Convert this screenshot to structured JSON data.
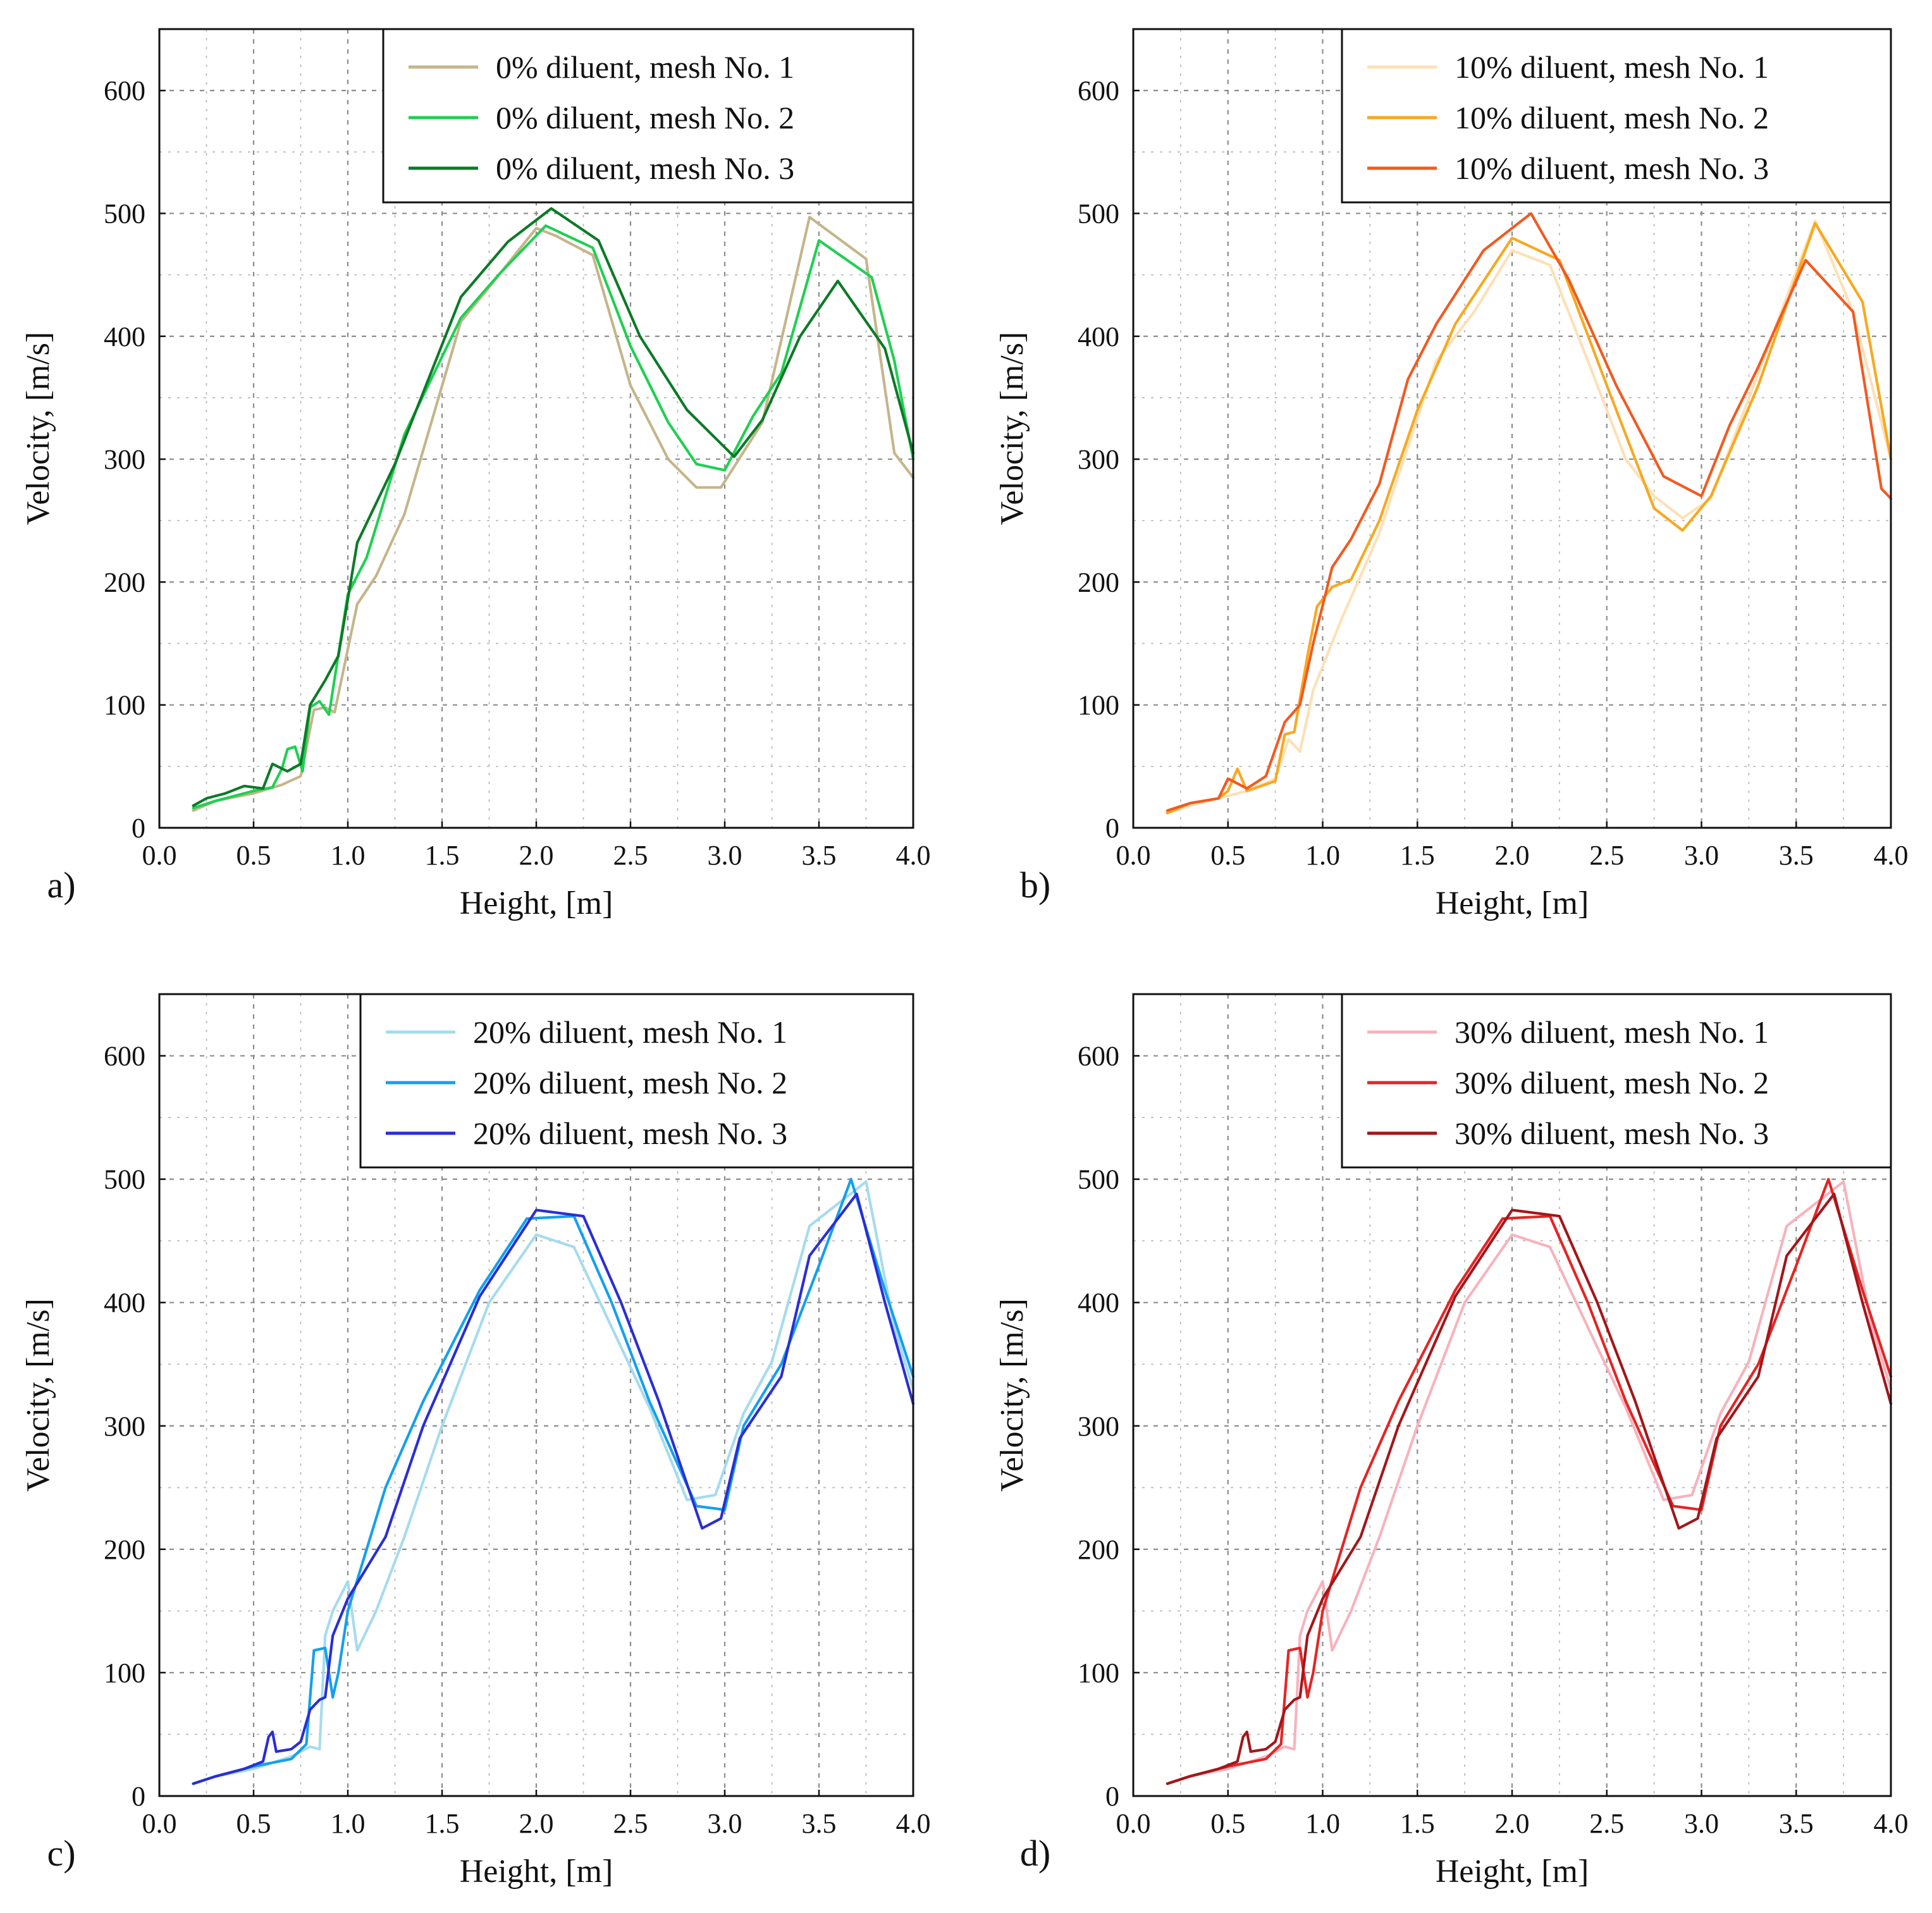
{
  "chart_data": [
    {
      "type": "line",
      "panel_tag": "a)",
      "xlabel": "Height, [m]",
      "ylabel": "Velocity, [m/s]",
      "xlim": [
        0.0,
        4.0
      ],
      "ylim": [
        0,
        650
      ],
      "xticks": [
        "0.0",
        "0.5",
        "1.0",
        "1.5",
        "2.0",
        "2.5",
        "3.0",
        "3.5",
        "4.0"
      ],
      "yticks": [
        "0",
        "100",
        "200",
        "300",
        "400",
        "500",
        "600"
      ],
      "grid": true,
      "legend_position": "top-right",
      "series": [
        {
          "name": "0% diluent, mesh No. 1",
          "color": "#c5b58b",
          "x": [
            0.18,
            0.3,
            0.5,
            0.65,
            0.75,
            0.82,
            0.88,
            0.93,
            1.05,
            1.15,
            1.3,
            1.6,
            1.75,
            2.0,
            2.1,
            2.3,
            2.5,
            2.7,
            2.85,
            2.98,
            3.2,
            3.45,
            3.75,
            3.9,
            4.0
          ],
          "y": [
            14,
            22,
            28,
            35,
            42,
            96,
            98,
            94,
            182,
            205,
            255,
            412,
            440,
            488,
            482,
            466,
            360,
            300,
            277,
            277,
            330,
            497,
            463,
            305,
            285
          ]
        },
        {
          "name": "0% diluent, mesh No. 2",
          "color": "#1fd052",
          "x": [
            0.18,
            0.3,
            0.5,
            0.6,
            0.65,
            0.68,
            0.72,
            0.76,
            0.8,
            0.85,
            0.9,
            1.0,
            1.1,
            1.3,
            1.6,
            1.8,
            2.05,
            2.3,
            2.5,
            2.7,
            2.85,
            3.0,
            3.15,
            3.3,
            3.5,
            3.78,
            3.9,
            4.0
          ],
          "y": [
            16,
            22,
            30,
            33,
            48,
            64,
            66,
            46,
            98,
            103,
            92,
            190,
            220,
            320,
            415,
            450,
            490,
            472,
            392,
            330,
            296,
            291,
            335,
            370,
            478,
            448,
            380,
            300
          ]
        },
        {
          "name": "0% diluent, mesh No. 3",
          "color": "#0c7a27",
          "x": [
            0.18,
            0.25,
            0.35,
            0.45,
            0.55,
            0.6,
            0.68,
            0.75,
            0.8,
            0.88,
            0.95,
            1.05,
            1.25,
            1.6,
            1.85,
            2.08,
            2.33,
            2.55,
            2.8,
            3.05,
            3.2,
            3.4,
            3.6,
            3.85,
            4.0
          ],
          "y": [
            18,
            24,
            28,
            34,
            32,
            52,
            46,
            52,
            100,
            120,
            140,
            232,
            296,
            432,
            477,
            504,
            478,
            400,
            340,
            302,
            332,
            400,
            445,
            390,
            305
          ]
        }
      ]
    },
    {
      "type": "line",
      "panel_tag": "b)",
      "xlabel": "Height, [m]",
      "ylabel": "Velocity, [m/s]",
      "xlim": [
        0.0,
        4.0
      ],
      "ylim": [
        0,
        650
      ],
      "xticks": [
        "0.0",
        "0.5",
        "1.0",
        "1.5",
        "2.0",
        "2.5",
        "3.0",
        "3.5",
        "4.0"
      ],
      "yticks": [
        "0",
        "100",
        "200",
        "300",
        "400",
        "500",
        "600"
      ],
      "grid": true,
      "legend_position": "top-right",
      "series": [
        {
          "name": "10% diluent, mesh No. 1",
          "color": "#fde0b6",
          "x": [
            0.18,
            0.3,
            0.45,
            0.6,
            0.75,
            0.82,
            0.88,
            0.95,
            1.1,
            1.3,
            1.6,
            1.8,
            2.0,
            2.2,
            2.4,
            2.6,
            2.75,
            2.9,
            3.05,
            3.3,
            3.6,
            3.8,
            4.0
          ],
          "y": [
            12,
            18,
            24,
            30,
            40,
            72,
            62,
            112,
            170,
            240,
            380,
            420,
            470,
            458,
            380,
            300,
            270,
            252,
            268,
            370,
            494,
            420,
            300
          ]
        },
        {
          "name": "10% diluent, mesh No. 2",
          "color": "#f8a81f",
          "x": [
            0.18,
            0.3,
            0.45,
            0.5,
            0.55,
            0.6,
            0.75,
            0.8,
            0.85,
            0.92,
            0.97,
            1.05,
            1.15,
            1.3,
            1.5,
            1.7,
            2.0,
            2.25,
            2.5,
            2.75,
            2.9,
            3.05,
            3.3,
            3.6,
            3.85,
            4.0
          ],
          "y": [
            12,
            20,
            24,
            30,
            48,
            30,
            38,
            76,
            78,
            140,
            180,
            196,
            202,
            250,
            340,
            410,
            480,
            462,
            360,
            260,
            242,
            270,
            360,
            492,
            428,
            300
          ]
        },
        {
          "name": "10% diluent, mesh No. 3",
          "color": "#f25a20",
          "x": [
            0.18,
            0.3,
            0.45,
            0.5,
            0.6,
            0.7,
            0.8,
            0.88,
            0.95,
            1.05,
            1.15,
            1.3,
            1.45,
            1.6,
            1.85,
            2.1,
            2.3,
            2.55,
            2.8,
            3.0,
            3.15,
            3.3,
            3.55,
            3.8,
            3.95,
            4.0
          ],
          "y": [
            14,
            20,
            24,
            40,
            32,
            42,
            86,
            100,
            150,
            212,
            235,
            280,
            365,
            410,
            470,
            500,
            446,
            360,
            286,
            270,
            328,
            375,
            462,
            420,
            276,
            268
          ]
        }
      ]
    },
    {
      "type": "line",
      "panel_tag": "c)",
      "xlabel": "Height, [m]",
      "ylabel": "Velocity, [m/s]",
      "xlim": [
        0.0,
        4.0
      ],
      "ylim": [
        0,
        650
      ],
      "xticks": [
        "0.0",
        "0.5",
        "1.0",
        "1.5",
        "2.0",
        "2.5",
        "3.0",
        "3.5",
        "4.0"
      ],
      "yticks": [
        "0",
        "100",
        "200",
        "300",
        "400",
        "500",
        "600"
      ],
      "grid": true,
      "legend_position": "top-right",
      "series": [
        {
          "name": "20% diluent, mesh No. 1",
          "color": "#a6dbee",
          "x": [
            0.18,
            0.3,
            0.5,
            0.7,
            0.8,
            0.85,
            0.88,
            0.92,
            1.0,
            1.05,
            1.15,
            1.3,
            1.5,
            1.75,
            2.0,
            2.2,
            2.4,
            2.6,
            2.8,
            2.95,
            3.1,
            3.25,
            3.45,
            3.6,
            3.75,
            3.9,
            4.0
          ],
          "y": [
            10,
            16,
            22,
            32,
            40,
            38,
            130,
            150,
            174,
            118,
            150,
            210,
            300,
            400,
            455,
            445,
            380,
            315,
            240,
            244,
            310,
            352,
            462,
            480,
            498,
            380,
            330
          ]
        },
        {
          "name": "20% diluent, mesh No. 2",
          "color": "#13a0ee",
          "x": [
            0.18,
            0.3,
            0.5,
            0.7,
            0.78,
            0.82,
            0.88,
            0.92,
            0.95,
            1.0,
            1.1,
            1.2,
            1.4,
            1.7,
            1.95,
            2.2,
            2.4,
            2.6,
            2.85,
            3.0,
            3.1,
            3.3,
            3.5,
            3.67,
            3.85,
            4.0
          ],
          "y": [
            10,
            16,
            24,
            30,
            42,
            118,
            120,
            80,
            100,
            150,
            200,
            250,
            320,
            410,
            468,
            470,
            400,
            320,
            235,
            232,
            300,
            350,
            430,
            500,
            410,
            340
          ]
        },
        {
          "name": "20% diluent, mesh No. 3",
          "color": "#2a2ed4",
          "x": [
            0.18,
            0.3,
            0.45,
            0.55,
            0.58,
            0.6,
            0.62,
            0.7,
            0.75,
            0.8,
            0.85,
            0.88,
            0.92,
            1.0,
            1.1,
            1.2,
            1.4,
            1.7,
            2.0,
            2.25,
            2.45,
            2.65,
            2.88,
            2.98,
            3.08,
            3.3,
            3.45,
            3.7,
            3.85,
            4.0
          ],
          "y": [
            10,
            16,
            22,
            28,
            48,
            52,
            36,
            38,
            44,
            70,
            78,
            80,
            130,
            160,
            185,
            210,
            300,
            405,
            475,
            470,
            400,
            320,
            217,
            225,
            290,
            340,
            438,
            488,
            400,
            318
          ]
        }
      ]
    },
    {
      "type": "line",
      "panel_tag": "d)",
      "xlabel": "Height, [m]",
      "ylabel": "Velocity, [m/s]",
      "xlim": [
        0.0,
        4.0
      ],
      "ylim": [
        0,
        650
      ],
      "xticks": [
        "0.0",
        "0.5",
        "1.0",
        "1.5",
        "2.0",
        "2.5",
        "3.0",
        "3.5",
        "4.0"
      ],
      "yticks": [
        "0",
        "100",
        "200",
        "300",
        "400",
        "500",
        "600"
      ],
      "grid": true,
      "legend_position": "top-right",
      "series": [
        {
          "name": "30% diluent, mesh No. 1",
          "color": "#f7b3bd",
          "x": [
            0.18,
            0.3,
            0.5,
            0.7,
            0.8,
            0.85,
            0.88,
            0.92,
            1.0,
            1.05,
            1.15,
            1.3,
            1.5,
            1.75,
            2.0,
            2.2,
            2.4,
            2.6,
            2.8,
            2.95,
            3.1,
            3.25,
            3.45,
            3.6,
            3.75,
            3.9,
            4.0
          ],
          "y": [
            10,
            16,
            22,
            32,
            40,
            38,
            130,
            150,
            174,
            118,
            150,
            210,
            300,
            400,
            455,
            445,
            380,
            315,
            240,
            244,
            310,
            352,
            462,
            480,
            498,
            380,
            330
          ]
        },
        {
          "name": "30% diluent, mesh No. 2",
          "color": "#e52424",
          "x": [
            0.18,
            0.3,
            0.5,
            0.7,
            0.78,
            0.82,
            0.88,
            0.92,
            0.95,
            1.0,
            1.1,
            1.2,
            1.4,
            1.7,
            1.95,
            2.2,
            2.4,
            2.6,
            2.85,
            3.0,
            3.1,
            3.3,
            3.5,
            3.67,
            3.85,
            4.0
          ],
          "y": [
            10,
            16,
            24,
            30,
            42,
            118,
            120,
            80,
            100,
            150,
            200,
            250,
            320,
            410,
            468,
            470,
            400,
            320,
            235,
            232,
            300,
            350,
            430,
            500,
            410,
            340
          ]
        },
        {
          "name": "30% diluent, mesh No. 3",
          "color": "#a3161a",
          "x": [
            0.18,
            0.3,
            0.45,
            0.55,
            0.58,
            0.6,
            0.62,
            0.7,
            0.75,
            0.8,
            0.85,
            0.88,
            0.92,
            1.0,
            1.1,
            1.2,
            1.4,
            1.7,
            2.0,
            2.25,
            2.45,
            2.65,
            2.88,
            2.98,
            3.08,
            3.3,
            3.45,
            3.7,
            3.85,
            4.0
          ],
          "y": [
            10,
            16,
            22,
            28,
            48,
            52,
            36,
            38,
            44,
            70,
            78,
            80,
            130,
            160,
            185,
            210,
            300,
            405,
            475,
            470,
            400,
            320,
            217,
            225,
            290,
            340,
            438,
            488,
            400,
            318
          ]
        }
      ]
    }
  ]
}
